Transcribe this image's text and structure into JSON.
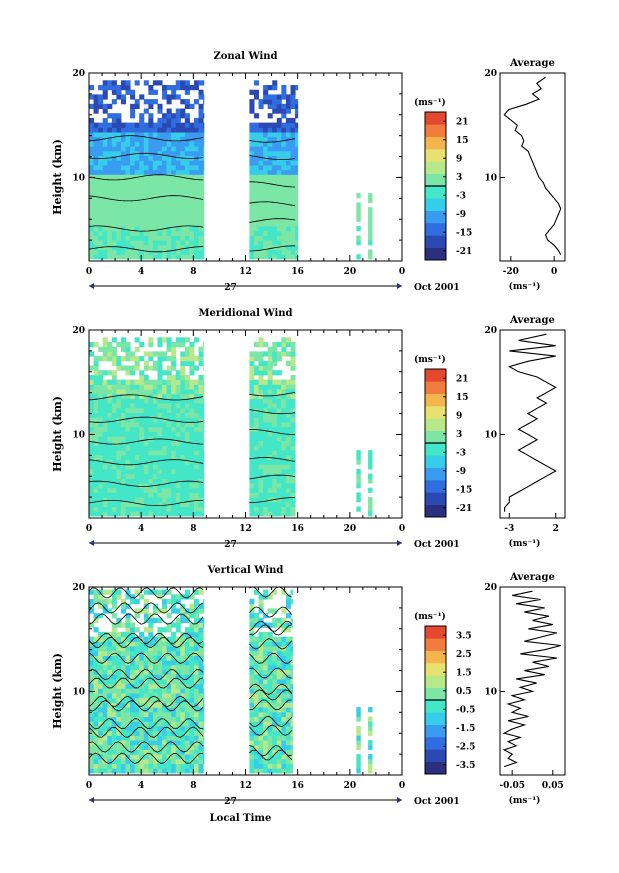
{
  "chart_data": [
    {
      "type": "heatmap",
      "title": "Zonal Wind",
      "ylabel": "Height (km)",
      "x_ticks": [
        "0",
        "4",
        "8",
        "12",
        "16",
        "20",
        "0"
      ],
      "xlim": [
        0,
        24
      ],
      "y_ticks": [
        "20",
        "10"
      ],
      "ylim": [
        2,
        20
      ],
      "date_label": "27",
      "date_suffix": "Oct 2001",
      "data_blocks": [
        [
          0,
          8.8
        ],
        [
          12.3,
          16
        ],
        [
          20.5,
          20.8
        ],
        [
          21.4,
          21.7
        ]
      ],
      "colorbar": {
        "unit": "(ms⁻¹)",
        "ticks": [
          "21",
          "15",
          "9",
          "3",
          "-3",
          "-9",
          "-15",
          "-21"
        ],
        "range": [
          -24,
          24
        ]
      },
      "average_panel": {
        "title": "Average",
        "xlabel": "(ms⁻¹)",
        "x_ticks": [
          "-20",
          "0"
        ],
        "xlim": [
          -25,
          5
        ],
        "y_ticks": [
          "20",
          "10"
        ],
        "ylim": [
          2,
          20
        ],
        "profile_heights": [
          19.6,
          19.0,
          18.5,
          18.0,
          17.5,
          17.0,
          16.5,
          16.0,
          15.5,
          15.0,
          14.5,
          14.0,
          13.5,
          13.0,
          12.5,
          12.0,
          11.5,
          11.0,
          10.5,
          10.0,
          9.5,
          9.0,
          8.5,
          8.0,
          7.5,
          7.0,
          6.5,
          6.0,
          5.5,
          5.0,
          4.5,
          4.0,
          3.5,
          3.0,
          2.6
        ],
        "profile_values": [
          -4,
          -8,
          -6,
          -10,
          -7,
          -13,
          -21,
          -23,
          -20,
          -17,
          -18,
          -15,
          -14,
          -15,
          -12,
          -11,
          -10,
          -9,
          -8,
          -7,
          -5,
          -4,
          -2,
          0,
          2,
          3,
          2,
          1,
          0,
          -2,
          -4,
          -3,
          0,
          2,
          3
        ]
      }
    },
    {
      "type": "heatmap",
      "title": "Meridional Wind",
      "ylabel": "Height (km)",
      "x_ticks": [
        "0",
        "4",
        "8",
        "12",
        "16",
        "20",
        "0"
      ],
      "xlim": [
        0,
        24
      ],
      "y_ticks": [
        "20",
        "10"
      ],
      "ylim": [
        2,
        20
      ],
      "date_label": "27",
      "date_suffix": "Oct 2001",
      "data_blocks": [
        [
          0,
          8.8
        ],
        [
          12.3,
          15.8
        ],
        [
          20.5,
          20.8
        ],
        [
          21.4,
          21.7
        ]
      ],
      "colorbar": {
        "unit": "(ms⁻¹)",
        "ticks": [
          "21",
          "15",
          "9",
          "3",
          "-3",
          "-9",
          "-15",
          "-21"
        ],
        "range": [
          -24,
          24
        ]
      },
      "average_panel": {
        "title": "Average",
        "xlabel": "(ms⁻¹)",
        "x_ticks": [
          "-3",
          "2"
        ],
        "xlim": [
          -4,
          3
        ],
        "y_ticks": [
          "20",
          "10"
        ],
        "ylim": [
          2,
          20
        ],
        "profile_heights": [
          19.6,
          19.0,
          18.5,
          18.0,
          17.5,
          17.0,
          16.5,
          16.0,
          15.5,
          15.0,
          14.5,
          14.0,
          13.5,
          13.0,
          12.5,
          12.0,
          11.5,
          11.0,
          10.5,
          10.0,
          9.5,
          9.0,
          8.5,
          8.0,
          7.5,
          7.0,
          6.5,
          6.0,
          5.5,
          5.0,
          4.5,
          4.0,
          3.5,
          3.0,
          2.6
        ],
        "profile_values": [
          1,
          -2,
          2,
          -3,
          2,
          -1,
          -3,
          -2,
          0,
          1,
          2,
          1,
          0,
          1,
          0,
          -1,
          0,
          -1,
          -2,
          -1,
          0,
          -1,
          -2,
          -1,
          0,
          1,
          2,
          1,
          0,
          -1,
          -2,
          -3,
          -3,
          -3.5,
          -3.5
        ]
      }
    },
    {
      "type": "heatmap",
      "title": "Vertical Wind",
      "ylabel": "Height (km)",
      "xlabel": "Local Time",
      "x_ticks": [
        "0",
        "4",
        "8",
        "12",
        "16",
        "20",
        "0"
      ],
      "xlim": [
        0,
        24
      ],
      "y_ticks": [
        "20",
        "10"
      ],
      "ylim": [
        2,
        20
      ],
      "date_label": "27",
      "date_suffix": "Oct 2001",
      "data_blocks": [
        [
          0,
          8.8
        ],
        [
          12.3,
          15.6
        ],
        [
          20.5,
          20.8
        ],
        [
          21.4,
          21.7
        ]
      ],
      "colorbar": {
        "unit": "(ms⁻¹)",
        "ticks": [
          "3.5",
          "2.5",
          "1.5",
          "0.5",
          "-0.5",
          "-1.5",
          "-2.5",
          "-3.5"
        ],
        "range": [
          -4,
          4
        ]
      },
      "average_panel": {
        "title": "Average",
        "xlabel": "(ms⁻¹)",
        "x_ticks": [
          "-0.05",
          "0.05"
        ],
        "xlim": [
          -0.08,
          0.08
        ],
        "y_ticks": [
          "20",
          "10"
        ],
        "ylim": [
          2,
          20
        ],
        "profile_heights": [
          19.6,
          19.2,
          18.8,
          18.4,
          18.0,
          17.6,
          17.2,
          16.8,
          16.4,
          16.0,
          15.6,
          15.2,
          14.8,
          14.4,
          14.0,
          13.6,
          13.2,
          12.8,
          12.4,
          12.0,
          11.6,
          11.2,
          10.8,
          10.4,
          10.0,
          9.6,
          9.2,
          8.8,
          8.4,
          8.0,
          7.6,
          7.2,
          6.8,
          6.4,
          6.0,
          5.6,
          5.2,
          4.8,
          4.4,
          4.0,
          3.6,
          3.2,
          2.8
        ],
        "profile_values": [
          0.0,
          -0.05,
          0.02,
          -0.04,
          0.03,
          -0.02,
          0.04,
          0.0,
          0.05,
          -0.01,
          0.06,
          0.02,
          -0.02,
          0.07,
          0.03,
          -0.03,
          0.06,
          0.0,
          0.04,
          -0.02,
          0.03,
          -0.04,
          0.01,
          -0.03,
          0.0,
          -0.05,
          -0.02,
          -0.06,
          -0.03,
          -0.05,
          -0.01,
          -0.06,
          -0.02,
          -0.05,
          -0.07,
          -0.03,
          -0.06,
          -0.04,
          -0.07,
          -0.05,
          -0.06,
          -0.04,
          -0.07
        ]
      }
    }
  ]
}
